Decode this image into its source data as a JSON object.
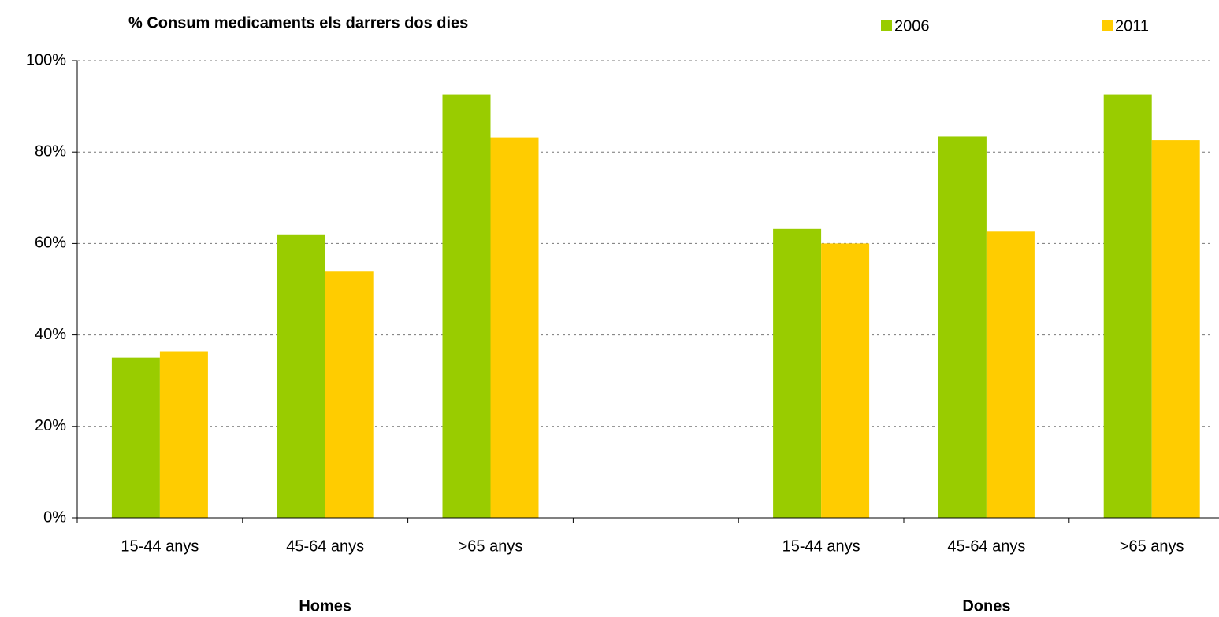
{
  "chart_data": {
    "type": "bar",
    "title": "% Consum medicaments els darrers dos dies",
    "categories": [
      "15-44 anys",
      "45-64 anys",
      ">65 anys",
      null,
      "15-44 anys",
      "45-64 anys",
      ">65 anys"
    ],
    "group_labels": [
      "Homes",
      "Dones"
    ],
    "series": [
      {
        "name": "2006",
        "color": "#99cc00",
        "values": [
          35,
          62,
          92.5,
          null,
          63.2,
          83.4,
          92.5
        ]
      },
      {
        "name": "2011",
        "color": "#ffcc00",
        "values": [
          36.4,
          54,
          83.2,
          null,
          60,
          62.6,
          82.6
        ]
      }
    ],
    "ylim": [
      0,
      100
    ],
    "yticks": [
      {
        "value": 0,
        "label": "0%"
      },
      {
        "value": 20,
        "label": "20%"
      },
      {
        "value": 40,
        "label": "40%"
      },
      {
        "value": 60,
        "label": "60%"
      },
      {
        "value": 80,
        "label": "80%"
      },
      {
        "value": 100,
        "label": "100%"
      }
    ],
    "grid": true
  }
}
